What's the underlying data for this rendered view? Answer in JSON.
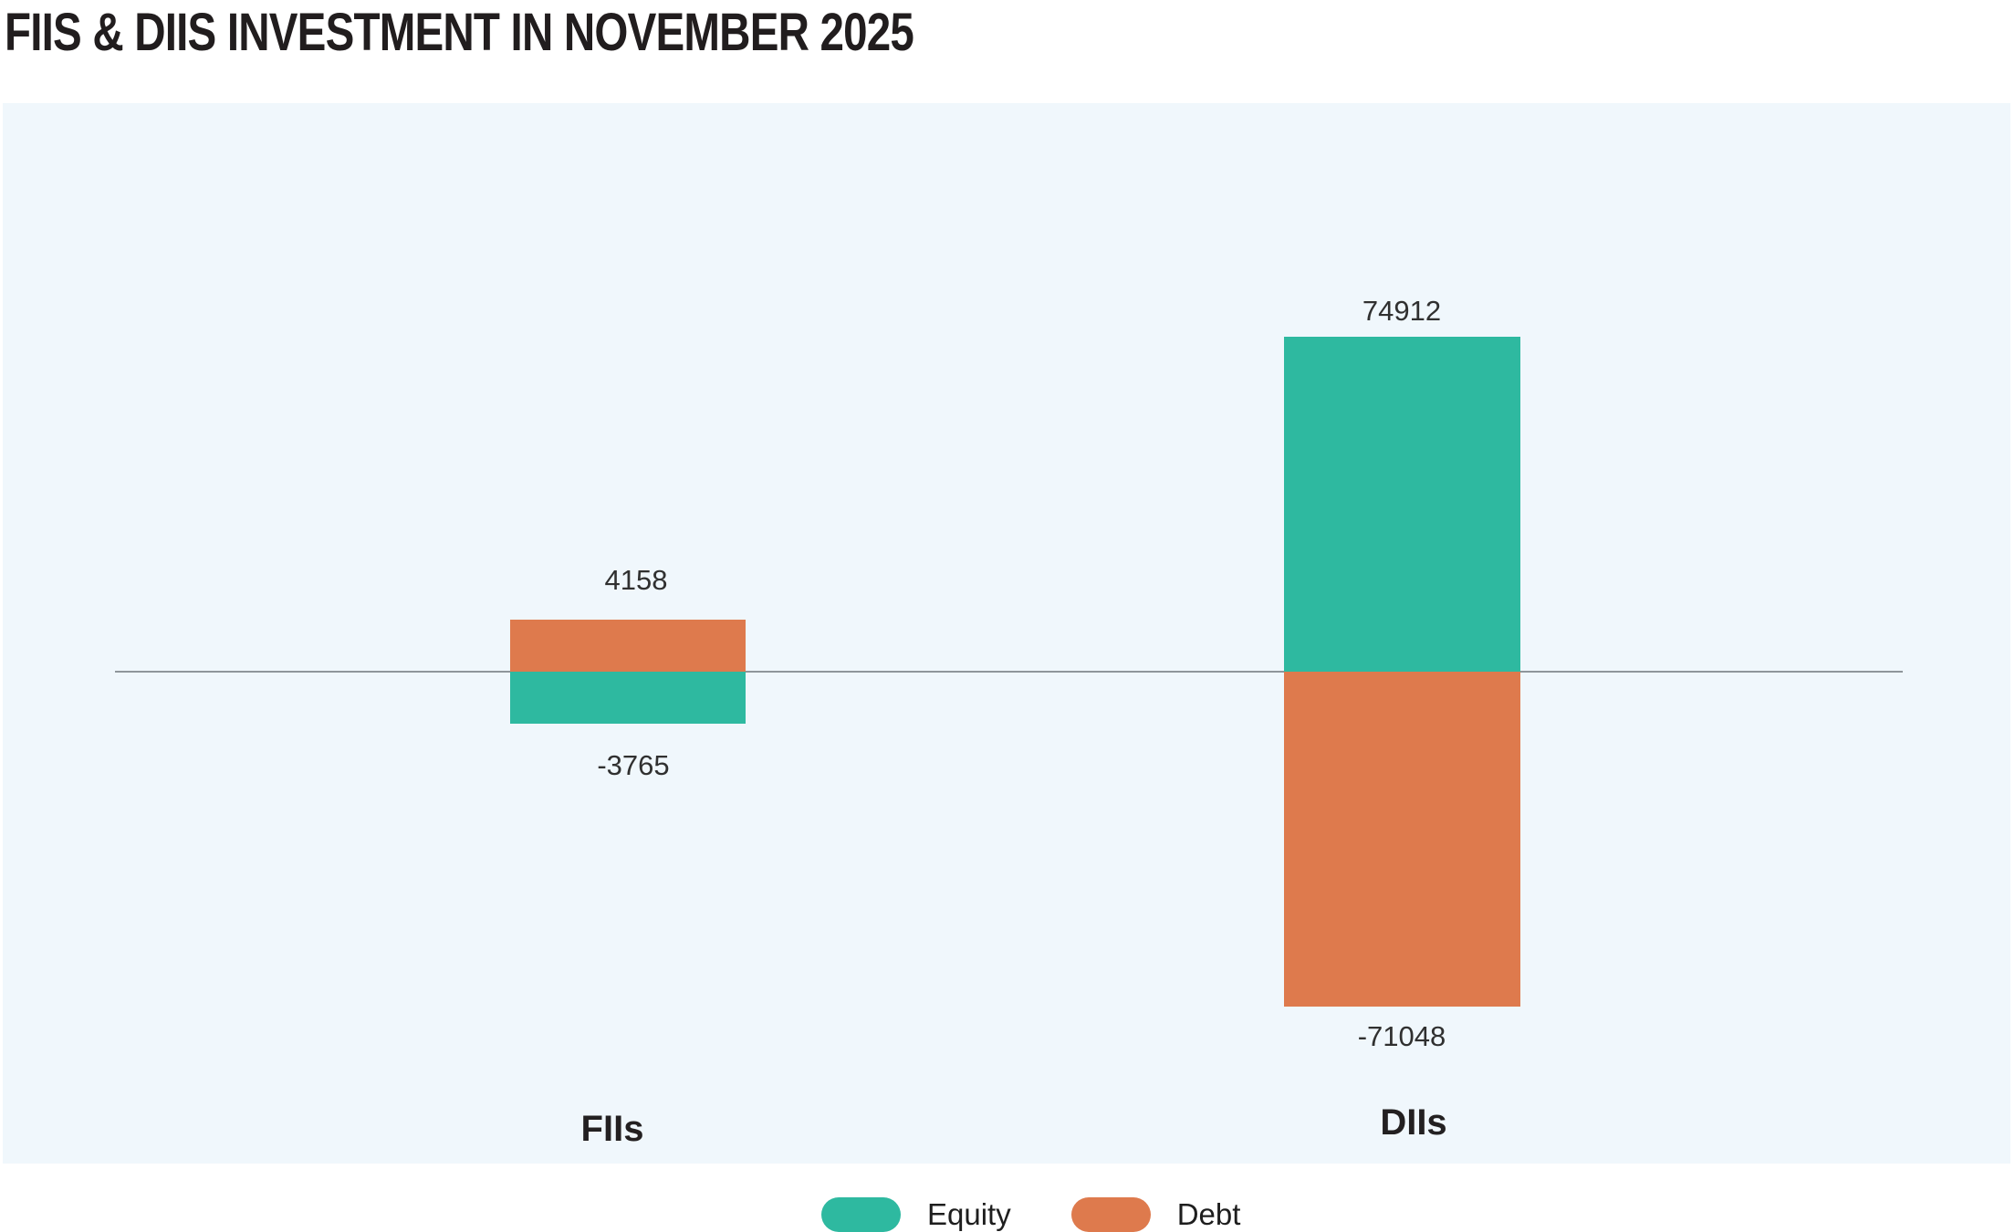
{
  "page": {
    "title": "FIIS & DIIS INVESTMENT IN NOVEMBER 2025"
  },
  "chart_data": {
    "type": "bar",
    "title": "FIIS & DIIS INVESTMENT IN NOVEMBER 2025",
    "subtitle": "",
    "xlabel": "",
    "ylabel": "",
    "categories": [
      "FIIs",
      "DIIs"
    ],
    "series": [
      {
        "name": "Equity",
        "color": "#2EB9A0",
        "values": [
          -3765,
          74912
        ]
      },
      {
        "name": "Debt",
        "color": "#DE7A4D",
        "values": [
          4158,
          -71048
        ]
      }
    ],
    "value_labels": {
      "fiis_debt": "4158",
      "fiis_equity": "-3765",
      "diis_equity": "74912",
      "diis_debt": "-71048"
    },
    "baseline": 0,
    "grid": false,
    "legend": {
      "position": "bottom",
      "items": [
        {
          "label": "Equity",
          "color": "#2EB9A0"
        },
        {
          "label": "Debt",
          "color": "#DE7A4D"
        }
      ]
    },
    "colors": {
      "plot_background": "#F0F7FC",
      "zero_line": "#8F969B",
      "equity": "#2EB9A0",
      "debt": "#DE7A4D"
    }
  }
}
